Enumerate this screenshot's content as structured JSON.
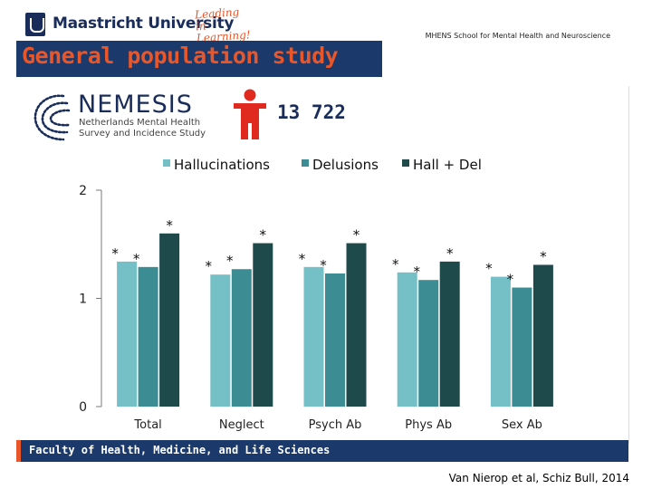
{
  "header": {
    "university": "Maastricht University",
    "slogan_line1": "Leading",
    "slogan_line2": "in Learning!",
    "school": "MHENS School for Mental Health and Neuroscience",
    "title": "General population study"
  },
  "study": {
    "name": "NEMESIS",
    "subtitle_line1": "Netherlands Mental Health",
    "subtitle_line2": "Survey and Incidence Study",
    "count": "13 722"
  },
  "colors": {
    "brand_blue": "#1b3a6b",
    "accent_orange": "#e8562a",
    "hallucinations": "#75bfc6",
    "delusions": "#3c8d93",
    "hall_del": "#1f4a4c",
    "icon_red": "#e0291f"
  },
  "chart_data": {
    "type": "bar",
    "categories": [
      "Total",
      "Neglect",
      "Psych Ab",
      "Phys Ab",
      "Sex Ab"
    ],
    "series": [
      {
        "name": "Hallucinations",
        "values": [
          1.34,
          1.22,
          1.29,
          1.24,
          1.2
        ]
      },
      {
        "name": "Delusions",
        "values": [
          1.29,
          1.27,
          1.23,
          1.17,
          1.1
        ]
      },
      {
        "name": "Hall + Del",
        "values": [
          1.6,
          1.51,
          1.51,
          1.34,
          1.31
        ]
      }
    ],
    "annotations": [
      [
        "*",
        "*",
        "*"
      ],
      [
        "*",
        "*",
        "*"
      ],
      [
        "*",
        "*",
        "*"
      ],
      [
        "*",
        "*",
        "*"
      ],
      [
        "*",
        "*",
        "*"
      ]
    ],
    "ylim": [
      0,
      2
    ],
    "yticks": [
      "0",
      "1",
      "2"
    ],
    "legend_position": "top"
  },
  "footer": {
    "faculty": "Faculty of Health, Medicine, and Life Sciences",
    "citation": "Van Nierop et al, Schiz Bull, 2014"
  }
}
